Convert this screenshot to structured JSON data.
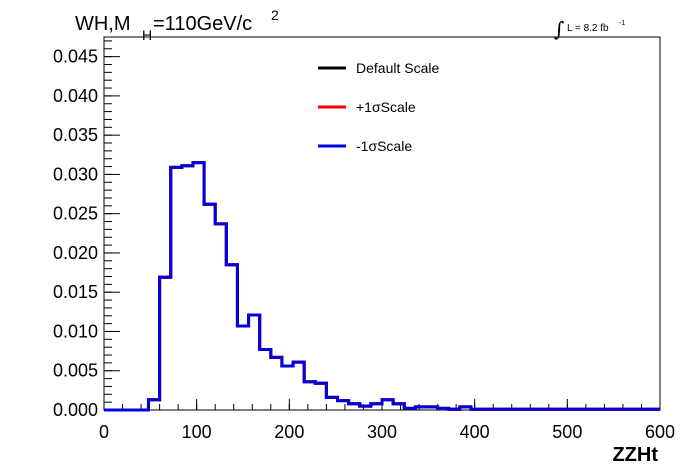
{
  "chart_data": {
    "type": "line",
    "style": "step-histogram",
    "title": {
      "main": "WH,M",
      "subscript": "H",
      "rest": "=110GeV/c",
      "superscript": "2"
    },
    "luminosity": {
      "text": "L = 8.2 fb",
      "superscript": "-1"
    },
    "xlabel": "ZZHt",
    "ylabel": "",
    "xlim": [
      0,
      600
    ],
    "ylim": [
      0,
      0.0475
    ],
    "x_ticks": [
      "0",
      "100",
      "200",
      "300",
      "400",
      "500",
      "600"
    ],
    "x_tick_values": [
      0,
      100,
      200,
      300,
      400,
      500,
      600
    ],
    "y_ticks": [
      "0.000",
      "0.005",
      "0.010",
      "0.015",
      "0.020",
      "0.025",
      "0.030",
      "0.035",
      "0.040",
      "0.045"
    ],
    "y_tick_values": [
      0,
      0.005,
      0.01,
      0.015,
      0.02,
      0.025,
      0.03,
      0.035,
      0.04,
      0.045
    ],
    "grid": false,
    "legend_position": "top-center",
    "bin_width": 12,
    "bin_edges_start": 0,
    "series": [
      {
        "name": "Default Scale",
        "color": "#000000",
        "values": [
          0,
          0,
          0,
          0,
          0.0013,
          0.0169,
          0.0309,
          0.0311,
          0.0315,
          0.0262,
          0.0237,
          0.0185,
          0.0107,
          0.0121,
          0.0077,
          0.0067,
          0.0056,
          0.0061,
          0.0036,
          0.0034,
          0.0016,
          0.0012,
          0.0008,
          0.0005,
          0.0008,
          0.0013,
          0.0008,
          0.0002,
          0.0004,
          0.0004,
          0.0002,
          0.0001,
          0.0004,
          0.0001,
          0.0001,
          0.0001,
          0.0001,
          0.0001,
          0.0001,
          0.0001,
          0.0001,
          0.0001,
          0.0001,
          0.0001,
          0.0001,
          0.0001,
          0.0001,
          0.0001,
          0.0001,
          0.0001
        ]
      },
      {
        "name": "+1σScale",
        "color": "#ff0000",
        "values": [
          0,
          0,
          0,
          0,
          0.0013,
          0.0169,
          0.0309,
          0.0311,
          0.0315,
          0.0262,
          0.0237,
          0.0185,
          0.0107,
          0.0121,
          0.0077,
          0.0067,
          0.0056,
          0.0061,
          0.0036,
          0.0034,
          0.0016,
          0.0012,
          0.0008,
          0.0005,
          0.0008,
          0.0013,
          0.0008,
          0.0002,
          0.0004,
          0.0004,
          0.0002,
          0.0001,
          0.0004,
          0.0001,
          0.0001,
          0.0001,
          0.0001,
          0.0001,
          0.0001,
          0.0001,
          0.0001,
          0.0001,
          0.0001,
          0.0001,
          0.0001,
          0.0001,
          0.0001,
          0.0001,
          0.0001,
          0.0001
        ]
      },
      {
        "name": "-1σScale",
        "color": "#0000dd",
        "values": [
          0,
          0,
          0,
          0,
          0.0013,
          0.0169,
          0.0309,
          0.0311,
          0.0315,
          0.0262,
          0.0237,
          0.0185,
          0.0107,
          0.0121,
          0.0077,
          0.0067,
          0.0056,
          0.0061,
          0.0036,
          0.0034,
          0.0016,
          0.0012,
          0.0008,
          0.0005,
          0.0008,
          0.0013,
          0.0008,
          0.0002,
          0.0004,
          0.0004,
          0.0002,
          0.0001,
          0.0004,
          0.0001,
          0.0001,
          0.0001,
          0.0001,
          0.0001,
          0.0001,
          0.0001,
          0.0001,
          0.0001,
          0.0001,
          0.0001,
          0.0001,
          0.0001,
          0.0001,
          0.0001,
          0.0001,
          0.0001
        ]
      }
    ]
  }
}
